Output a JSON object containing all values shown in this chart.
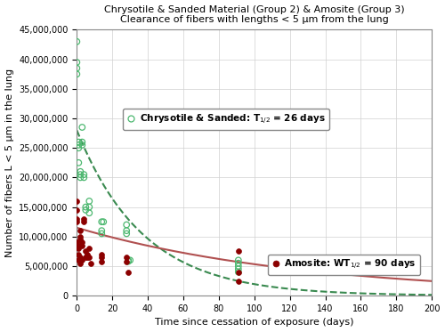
{
  "title_line1": "Chrysotile & Sanded Material (Group 2) & Amosite (Group 3)",
  "title_line2": "Clearance of fibers with lengths < 5 μm from the lung",
  "xlabel": "Time since cessation of exposure (days)",
  "ylabel": "Number of fibers L < 5 μm in the lung",
  "xlim": [
    0,
    200
  ],
  "ylim": [
    0,
    45000000
  ],
  "xticks": [
    0,
    20,
    40,
    60,
    80,
    100,
    120,
    140,
    160,
    180,
    200
  ],
  "yticks": [
    0,
    5000000,
    10000000,
    15000000,
    20000000,
    25000000,
    30000000,
    35000000,
    40000000,
    45000000
  ],
  "chrysotile_x": [
    0,
    0,
    0,
    0,
    1,
    1,
    1,
    1,
    2,
    2,
    2,
    3,
    3,
    3,
    4,
    4,
    5,
    5,
    7,
    7,
    7,
    14,
    14,
    14,
    15,
    28,
    28,
    28,
    29,
    29,
    30,
    91,
    91,
    91,
    91,
    91
  ],
  "chrysotile_y": [
    43000000,
    39500000,
    38500000,
    37500000,
    26000000,
    25500000,
    25000000,
    22500000,
    21000000,
    20500000,
    20000000,
    28500000,
    26000000,
    25500000,
    20500000,
    20000000,
    15000000,
    14500000,
    16000000,
    15000000,
    14000000,
    12500000,
    11000000,
    10500000,
    12500000,
    12000000,
    11000000,
    10500000,
    6000000,
    5800000,
    6000000,
    6000000,
    5500000,
    5000000,
    4500000,
    4000000
  ],
  "amosite_x": [
    0,
    0,
    0,
    0,
    0,
    0,
    1,
    1,
    1,
    1,
    2,
    2,
    2,
    2,
    2,
    3,
    3,
    3,
    4,
    4,
    5,
    5,
    6,
    6,
    7,
    7,
    8,
    14,
    14,
    14,
    28,
    28,
    29,
    91,
    91,
    91
  ],
  "amosite_y": [
    16000000,
    14500000,
    13000000,
    12500000,
    9000000,
    8500000,
    8500000,
    8000000,
    7000000,
    6000000,
    11000000,
    10000000,
    9500000,
    6500000,
    5500000,
    9000000,
    8500000,
    6000000,
    13000000,
    12500000,
    7500000,
    6500000,
    7000000,
    6500000,
    8000000,
    6500000,
    5500000,
    7000000,
    6500000,
    5800000,
    6500000,
    5800000,
    4000000,
    7500000,
    4000000,
    2500000
  ],
  "chrysotile_color": "#4db870",
  "amosite_color": "#8b0000",
  "chrysotile_fit_color": "#3a8a50",
  "amosite_fit_color": "#b05050",
  "chrysotile_t_half": 26,
  "amosite_t_half": 90,
  "chrysotile_n0": 28000000,
  "amosite_n0": 11500000,
  "legend_chrysotile": "Chrysotile & Sanded: T$_{1/2}$ = 26 days",
  "legend_amosite": "Amosite: WT$_{1/2}$ = 90 days",
  "background_color": "#ffffff",
  "grid_color": "#d0d0d0"
}
